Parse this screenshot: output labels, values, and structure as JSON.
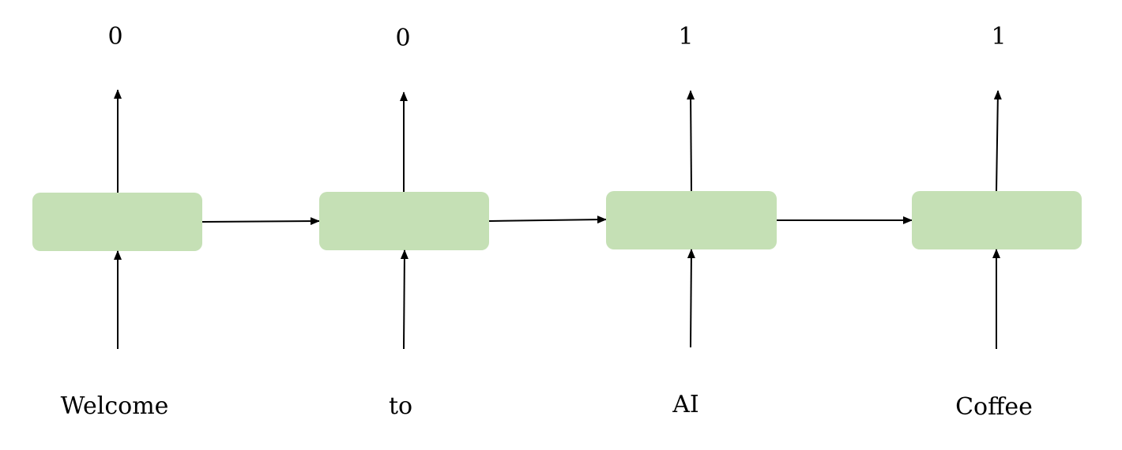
{
  "colors": {
    "cell_fill": "#c5e0b5",
    "arrow": "#000000",
    "text": "#000000"
  },
  "steps": [
    {
      "input": "Welcome",
      "output": "0"
    },
    {
      "input": "to",
      "output": "0"
    },
    {
      "input": "AI",
      "output": "1"
    },
    {
      "input": "Coffee",
      "output": "1"
    }
  ]
}
